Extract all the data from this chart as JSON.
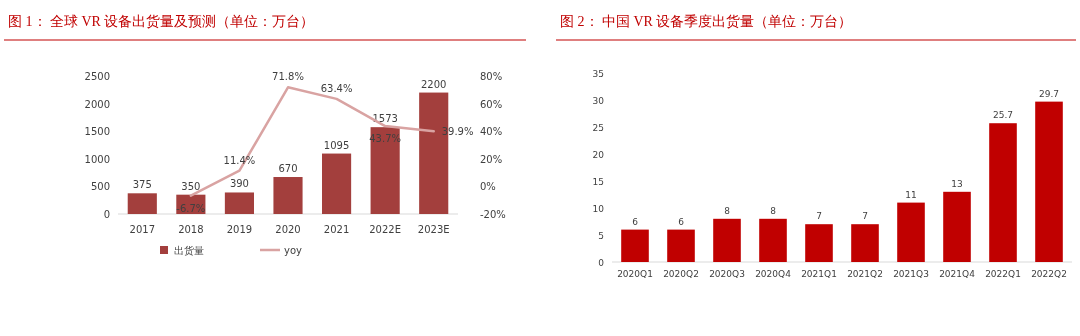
{
  "chart_data": [
    {
      "type": "bar",
      "title": "图 1：  全球 VR 设备出货量及预测（单位：万台）",
      "categories": [
        "2017",
        "2018",
        "2019",
        "2020",
        "2021",
        "2022E",
        "2023E"
      ],
      "series": [
        {
          "name": "出货量",
          "type": "bar",
          "color": "#a33f3d",
          "values": [
            375,
            350,
            390,
            670,
            1095,
            1573,
            2200
          ],
          "value_labels": [
            "375",
            "350",
            "390",
            "670",
            "1095",
            "1573",
            "2200"
          ]
        },
        {
          "name": "yoy",
          "type": "line",
          "axis": "y2",
          "color": "#d9a3a2",
          "values": [
            null,
            -6.7,
            11.4,
            71.8,
            63.4,
            43.7,
            39.9
          ],
          "value_labels": [
            null,
            "-6.7%",
            "11.4%",
            "71.8%",
            "63.4%",
            "43.7%",
            "39.9%"
          ]
        }
      ],
      "ylim": [
        0,
        2500
      ],
      "yticks": [
        0,
        500,
        1000,
        1500,
        2000,
        2500
      ],
      "y2lim": [
        -20,
        80
      ],
      "y2ticks": [
        {
          "value": -20,
          "label": "-20%"
        },
        {
          "value": 0,
          "label": "0%"
        },
        {
          "value": 20,
          "label": "20%"
        },
        {
          "value": 40,
          "label": "40%"
        },
        {
          "value": 60,
          "label": "60%"
        },
        {
          "value": 80,
          "label": "80%"
        }
      ],
      "legend": "bottom"
    },
    {
      "type": "bar",
      "title": "图 2：  中国 VR 设备季度出货量（单位：万台）",
      "categories": [
        "2020Q1",
        "2020Q2",
        "2020Q3",
        "2020Q4",
        "2021Q1",
        "2021Q2",
        "2021Q3",
        "2021Q4",
        "2022Q1",
        "2022Q2"
      ],
      "series": [
        {
          "color": "#c00000",
          "values": [
            6,
            6,
            8,
            8,
            7,
            7,
            11,
            13,
            25.7,
            29.7
          ],
          "value_labels": [
            "6",
            "6",
            "8",
            "8",
            "7",
            "7",
            "11",
            "13",
            "25.7",
            "29.7"
          ]
        }
      ],
      "ylim": [
        0,
        35
      ],
      "yticks": [
        0,
        5,
        10,
        15,
        20,
        25,
        30,
        35
      ]
    }
  ]
}
